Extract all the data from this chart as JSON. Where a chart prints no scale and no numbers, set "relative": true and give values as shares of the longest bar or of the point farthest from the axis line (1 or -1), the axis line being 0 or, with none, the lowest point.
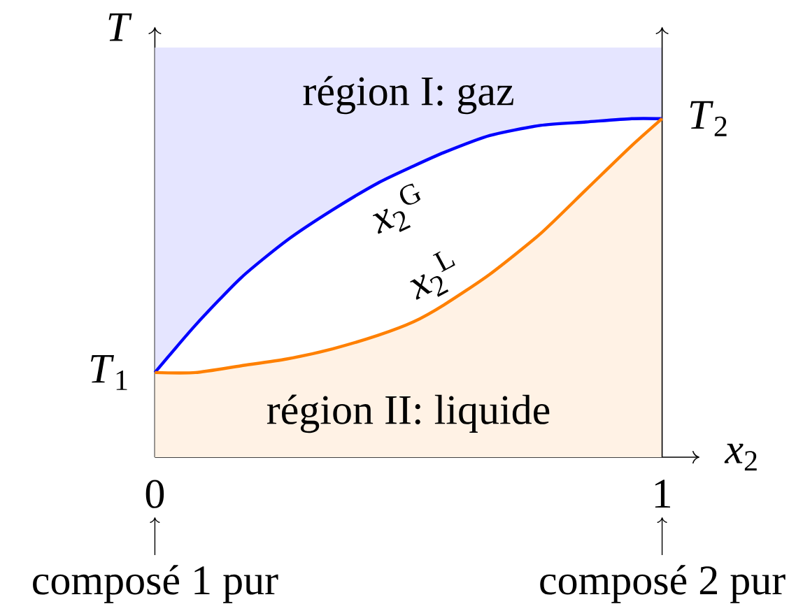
{
  "chart_data": {
    "type": "line",
    "xlabel": "*x*$_{2}$",
    "ylabel": "T",
    "relative": true,
    "xlim": [
      0,
      1
    ],
    "xticks": [
      0,
      1
    ],
    "x": [
      0,
      0.08,
      0.17,
      0.26,
      0.35,
      0.44,
      0.51,
      0.57,
      0.66,
      0.76,
      0.85,
      0.94,
      1
    ],
    "series": [
      {
        "name": "*x*$_{2}$$^{G}$",
        "color": "#0000ff",
        "values": [
          0.25,
          0.39,
          0.53,
          0.64,
          0.73,
          0.81,
          0.86,
          0.9,
          0.95,
          0.98,
          0.99,
          1,
          1
        ],
        "lower": [
          0.25,
          0.39,
          0.53,
          0.64,
          0.73,
          0.81,
          0.86,
          0.9,
          0.95,
          0.98,
          0.99,
          1,
          1
        ],
        "upper": [
          1.21,
          1.21,
          1.21,
          1.21,
          1.21,
          1.21,
          1.21,
          1.21,
          1.21,
          1.21,
          1.21,
          1.21,
          1.21
        ]
      },
      {
        "name": "*x*$_{2}$$^{L}$",
        "type": "area",
        "color": "#ff8000",
        "values": [
          0.25,
          0.25,
          0.27,
          0.29,
          0.32,
          0.36,
          0.4,
          0.45,
          0.54,
          0.66,
          0.79,
          0.92,
          1
        ]
      }
    ],
    "ref_lines": [
      {
        "axis": "x",
        "value": 1
      }
    ],
    "annotations": [
      "région I: gaz",
      "région II: liquide",
      {
        "text": "*T*$_{1}$",
        "x": 0,
        "y": 0.25
      },
      {
        "text": "*T*$_{2}$",
        "x": 1,
        "y": 1
      },
      "composé 1 pur",
      "composé 2 pur"
    ]
  }
}
